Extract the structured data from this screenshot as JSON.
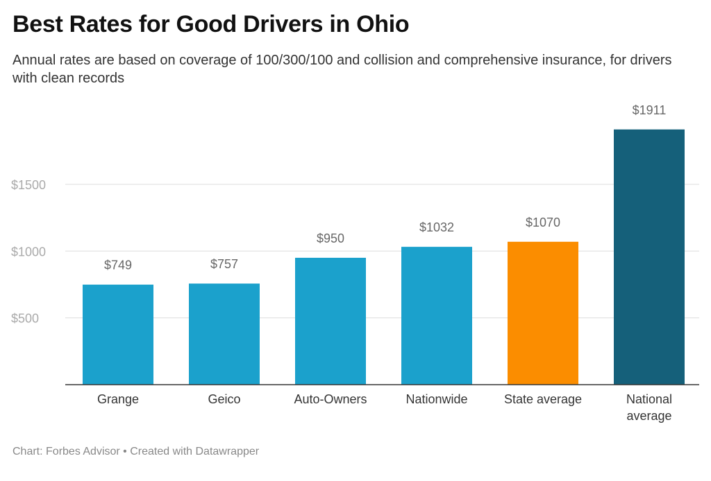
{
  "header": {
    "title": "Best Rates for Good Drivers in Ohio",
    "subtitle": "Annual rates are based on coverage of 100/300/100 and collision and comprehensive insurance, for drivers with clean records"
  },
  "footer": {
    "credit": "Chart: Forbes Advisor • Created with Datawrapper"
  },
  "chart_data": {
    "type": "bar",
    "title": "Best Rates for Good Drivers in Ohio",
    "xlabel": "",
    "ylabel": "",
    "categories": [
      "Grange",
      "Geico",
      "Auto-Owners",
      "Nationwide",
      "State average",
      "National average"
    ],
    "category_lines": [
      [
        "Grange"
      ],
      [
        "Geico"
      ],
      [
        "Auto-Owners"
      ],
      [
        "Nationwide"
      ],
      [
        "State average"
      ],
      [
        "National",
        "average"
      ]
    ],
    "values": [
      749,
      757,
      950,
      1032,
      1070,
      1911
    ],
    "value_labels": [
      "$749",
      "$757",
      "$950",
      "$1032",
      "$1070",
      "$1911"
    ],
    "bar_colors": [
      "#1ba1cc",
      "#1ba1cc",
      "#1ba1cc",
      "#1ba1cc",
      "#fb8d00",
      "#15607a"
    ],
    "ylim": [
      0,
      2000
    ],
    "yticks": [
      500,
      1000,
      1500
    ],
    "ytick_labels": [
      "$500",
      "$1000",
      "$1500"
    ],
    "grid": true,
    "legend": "none"
  }
}
